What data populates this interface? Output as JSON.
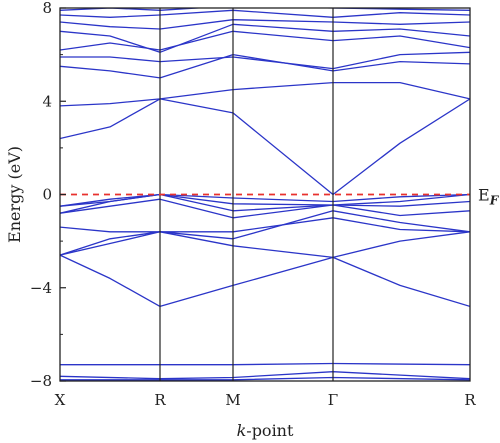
{
  "chart_data": {
    "type": "line",
    "xlabel_italic": "k",
    "xlabel_rest": "-point",
    "ylabel": "Energy (eV)",
    "ylim": [
      -8,
      8
    ],
    "yticks": [
      8,
      4,
      0,
      -4,
      -8
    ],
    "ytick_labels": [
      "8",
      "4",
      "0",
      "−4",
      "−8"
    ],
    "kpoints": [
      {
        "label": "X",
        "x": 0
      },
      {
        "label": "R",
        "x": 1
      },
      {
        "label": "M",
        "x": 1.73
      },
      {
        "label": "Γ",
        "x": 2.73
      },
      {
        "label": "R",
        "x": 4.1
      }
    ],
    "fermi_level": {
      "value": 0,
      "label": "E",
      "sub": "F",
      "color": "#e8312e"
    },
    "colors": {
      "bands": "#2b35c8",
      "axis": "#222222"
    },
    "bands": [
      [
        [
          0,
          -7.8
        ],
        [
          1,
          -7.9
        ],
        [
          1.73,
          -7.85
        ],
        [
          2.73,
          -7.6
        ],
        [
          4.1,
          -7.9
        ]
      ],
      [
        [
          0,
          -7.95
        ],
        [
          1,
          -7.95
        ],
        [
          1.73,
          -7.95
        ],
        [
          2.73,
          -7.85
        ],
        [
          4.1,
          -7.95
        ]
      ],
      [
        [
          0,
          -7.3
        ],
        [
          1,
          -7.3
        ],
        [
          1.73,
          -7.3
        ],
        [
          2.73,
          -7.25
        ],
        [
          4.1,
          -7.3
        ]
      ],
      [
        [
          0,
          -2.6
        ],
        [
          0.5,
          -3.6
        ],
        [
          1,
          -4.8
        ],
        [
          1.73,
          -3.9
        ],
        [
          2.73,
          -2.7
        ],
        [
          3.4,
          -3.9
        ],
        [
          4.1,
          -4.8
        ]
      ],
      [
        [
          0,
          -2.6
        ],
        [
          0.5,
          -2.1
        ],
        [
          1,
          -1.6
        ],
        [
          1.73,
          -2.2
        ],
        [
          2.73,
          -2.7
        ],
        [
          3.4,
          -2.0
        ],
        [
          4.1,
          -1.6
        ]
      ],
      [
        [
          0,
          -2.6
        ],
        [
          0.5,
          -1.9
        ],
        [
          1,
          -1.6
        ],
        [
          1.73,
          -1.6
        ],
        [
          2.73,
          -1.0
        ],
        [
          3.4,
          -1.5
        ],
        [
          4.1,
          -1.6
        ]
      ],
      [
        [
          0,
          -1.4
        ],
        [
          0.5,
          -1.6
        ],
        [
          1,
          -1.6
        ],
        [
          1.73,
          -1.9
        ],
        [
          2.73,
          -0.7
        ],
        [
          3.4,
          -1.2
        ],
        [
          4.1,
          -1.6
        ]
      ],
      [
        [
          0,
          -0.8
        ],
        [
          0.5,
          -0.5
        ],
        [
          1,
          -0.2
        ],
        [
          1.73,
          -1.0
        ],
        [
          2.73,
          -0.45
        ],
        [
          3.4,
          -0.9
        ],
        [
          4.1,
          -0.7
        ]
      ],
      [
        [
          0,
          -0.8
        ],
        [
          0.5,
          -0.3
        ],
        [
          1,
          0
        ],
        [
          1.73,
          -0.7
        ],
        [
          2.73,
          -0.45
        ],
        [
          3.4,
          -0.5
        ],
        [
          4.1,
          -0.3
        ]
      ],
      [
        [
          0,
          -0.5
        ],
        [
          0.5,
          -0.3
        ],
        [
          1,
          0
        ],
        [
          1.73,
          -0.4
        ],
        [
          2.73,
          -0.45
        ],
        [
          3.4,
          -0.3
        ],
        [
          4.1,
          0
        ]
      ],
      [
        [
          0,
          -0.5
        ],
        [
          0.5,
          -0.2
        ],
        [
          1,
          0
        ],
        [
          1.73,
          -0.15
        ],
        [
          2.73,
          -0.3
        ],
        [
          3.4,
          -0.1
        ],
        [
          4.1,
          0
        ]
      ],
      [
        [
          0,
          2.4
        ],
        [
          0.5,
          2.9
        ],
        [
          1,
          4.1
        ],
        [
          1.73,
          3.5
        ],
        [
          2.73,
          0
        ],
        [
          3.4,
          2.2
        ],
        [
          4.1,
          4.1
        ]
      ],
      [
        [
          0,
          3.8
        ],
        [
          0.5,
          3.9
        ],
        [
          1,
          4.1
        ],
        [
          1.73,
          4.5
        ],
        [
          2.73,
          4.8
        ],
        [
          3.4,
          4.8
        ],
        [
          4.1,
          4.1
        ]
      ],
      [
        [
          0,
          5.5
        ],
        [
          0.5,
          5.3
        ],
        [
          1,
          5.0
        ],
        [
          1.73,
          6.0
        ],
        [
          2.73,
          5.3
        ],
        [
          3.4,
          5.7
        ],
        [
          4.1,
          5.6
        ]
      ],
      [
        [
          0,
          5.9
        ],
        [
          0.5,
          5.9
        ],
        [
          1,
          5.7
        ],
        [
          1.73,
          5.9
        ],
        [
          2.73,
          5.4
        ],
        [
          3.4,
          6.0
        ],
        [
          4.1,
          6.1
        ]
      ],
      [
        [
          0,
          6.2
        ],
        [
          0.5,
          6.5
        ],
        [
          1,
          6.2
        ],
        [
          1.73,
          7.0
        ],
        [
          2.73,
          6.6
        ],
        [
          3.4,
          6.8
        ],
        [
          4.1,
          6.3
        ]
      ],
      [
        [
          0,
          7.0
        ],
        [
          0.5,
          6.8
        ],
        [
          1,
          6.1
        ],
        [
          1.73,
          7.3
        ],
        [
          2.73,
          7.0
        ],
        [
          3.4,
          7.1
        ],
        [
          4.1,
          6.8
        ]
      ],
      [
        [
          0,
          7.4
        ],
        [
          0.5,
          7.2
        ],
        [
          1,
          7.1
        ],
        [
          1.73,
          7.5
        ],
        [
          2.73,
          7.4
        ],
        [
          3.4,
          7.3
        ],
        [
          4.1,
          7.4
        ]
      ],
      [
        [
          0,
          7.7
        ],
        [
          0.5,
          7.6
        ],
        [
          1,
          7.7
        ],
        [
          1.73,
          7.9
        ],
        [
          2.73,
          7.6
        ],
        [
          3.4,
          7.8
        ],
        [
          4.1,
          7.7
        ]
      ],
      [
        [
          0,
          7.9
        ],
        [
          0.5,
          8.0
        ],
        [
          1,
          7.9
        ],
        [
          1.73,
          8.1
        ],
        [
          2.73,
          8.0
        ],
        [
          3.4,
          7.95
        ],
        [
          4.1,
          7.9
        ]
      ]
    ]
  }
}
